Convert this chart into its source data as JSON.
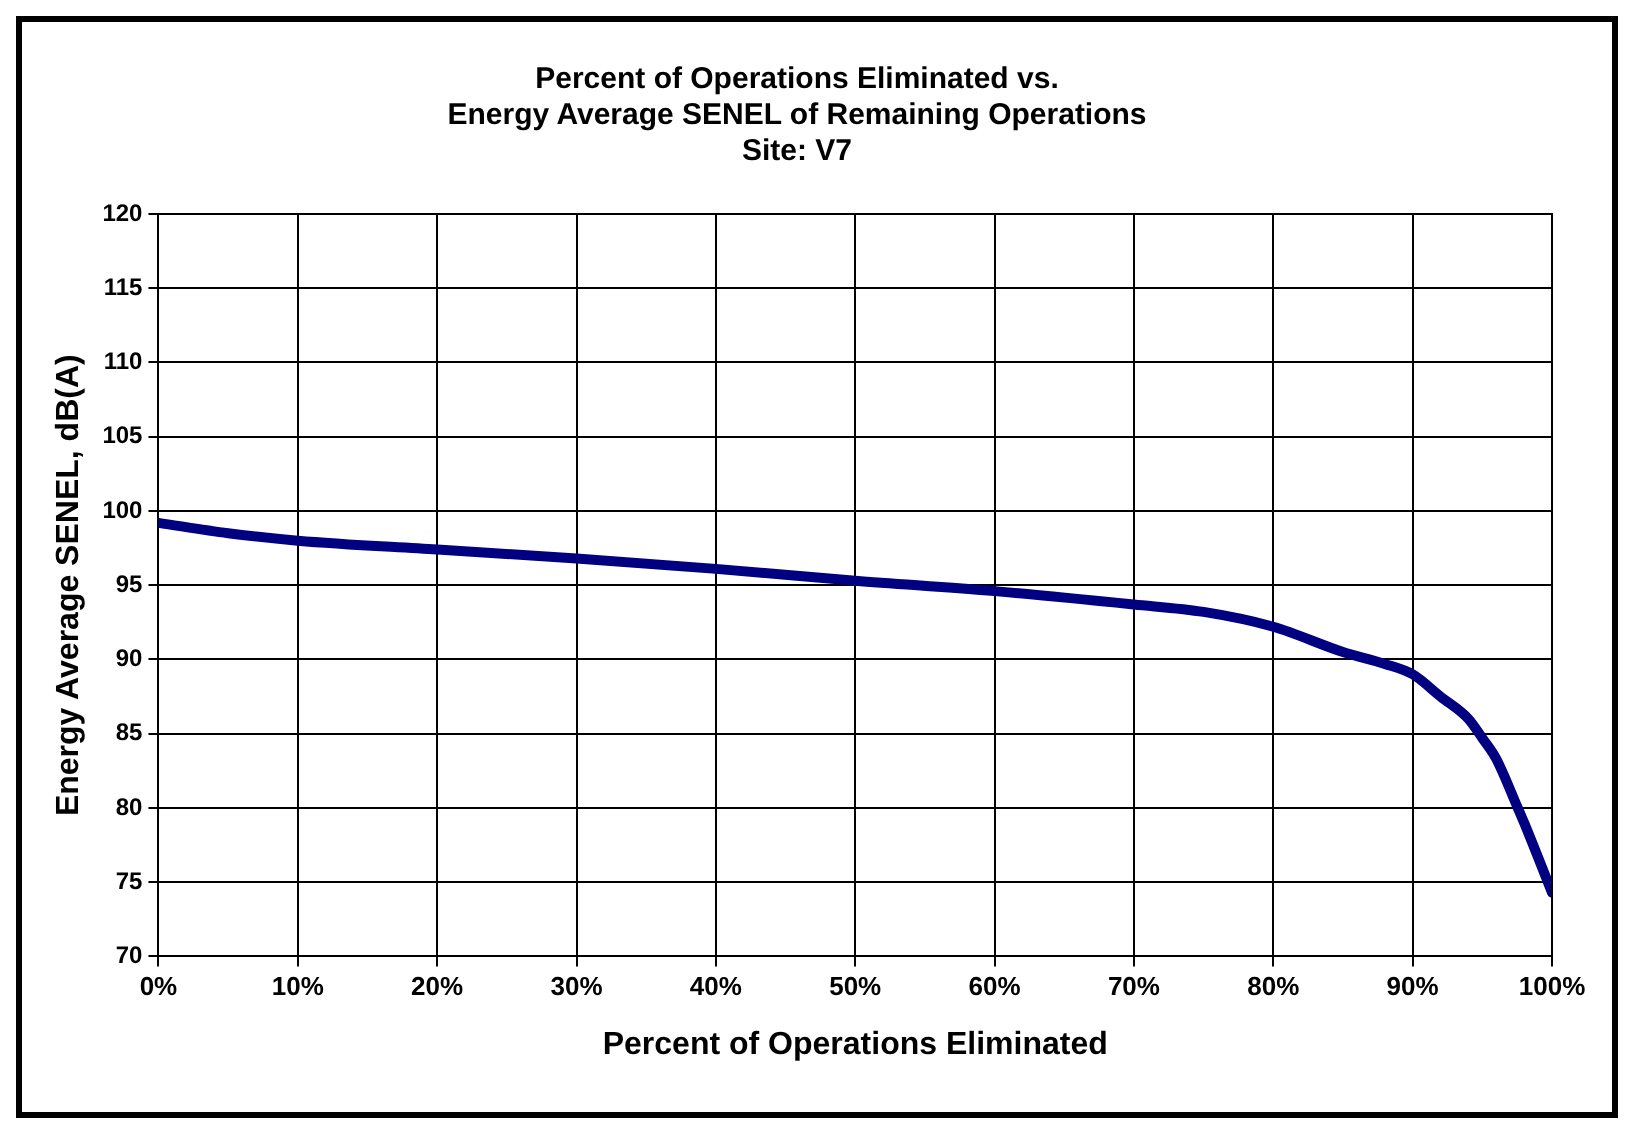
{
  "chart_data": {
    "type": "line",
    "title": [
      "Percent of Operations Eliminated vs.",
      "Energy Average SENEL of Remaining Operations",
      "Site: V7"
    ],
    "xlabel": "Percent of Operations Eliminated",
    "ylabel": "Energy Average SENEL, dB(A)",
    "x": [
      0,
      5,
      10,
      20,
      30,
      40,
      50,
      60,
      70,
      75,
      80,
      85,
      88,
      90,
      92,
      94,
      95,
      96,
      97.5,
      98,
      100
    ],
    "series": [
      {
        "color": "#000080",
        "values": [
          99.2,
          98.5,
          98.0,
          97.4,
          96.8,
          96.1,
          95.3,
          94.6,
          93.7,
          93.2,
          92.2,
          90.5,
          89.7,
          89.0,
          87.5,
          86.0,
          84.7,
          83.3,
          80.1,
          79.0,
          74.3
        ]
      }
    ],
    "xlim": [
      0,
      100
    ],
    "xticks": [
      {
        "value": 0,
        "label": "0%"
      },
      {
        "value": 10,
        "label": "10%"
      },
      {
        "value": 20,
        "label": "20%"
      },
      {
        "value": 30,
        "label": "30%"
      },
      {
        "value": 40,
        "label": "40%"
      },
      {
        "value": 50,
        "label": "50%"
      },
      {
        "value": 60,
        "label": "60%"
      },
      {
        "value": 70,
        "label": "70%"
      },
      {
        "value": 80,
        "label": "80%"
      },
      {
        "value": 90,
        "label": "90%"
      },
      {
        "value": 100,
        "label": "100%"
      }
    ],
    "ylim": [
      70,
      120
    ],
    "yticks": [
      70,
      75,
      80,
      85,
      90,
      95,
      100,
      105,
      110,
      115,
      120
    ],
    "grid": true,
    "legend": false,
    "marker": "none",
    "line_style": "solid"
  }
}
